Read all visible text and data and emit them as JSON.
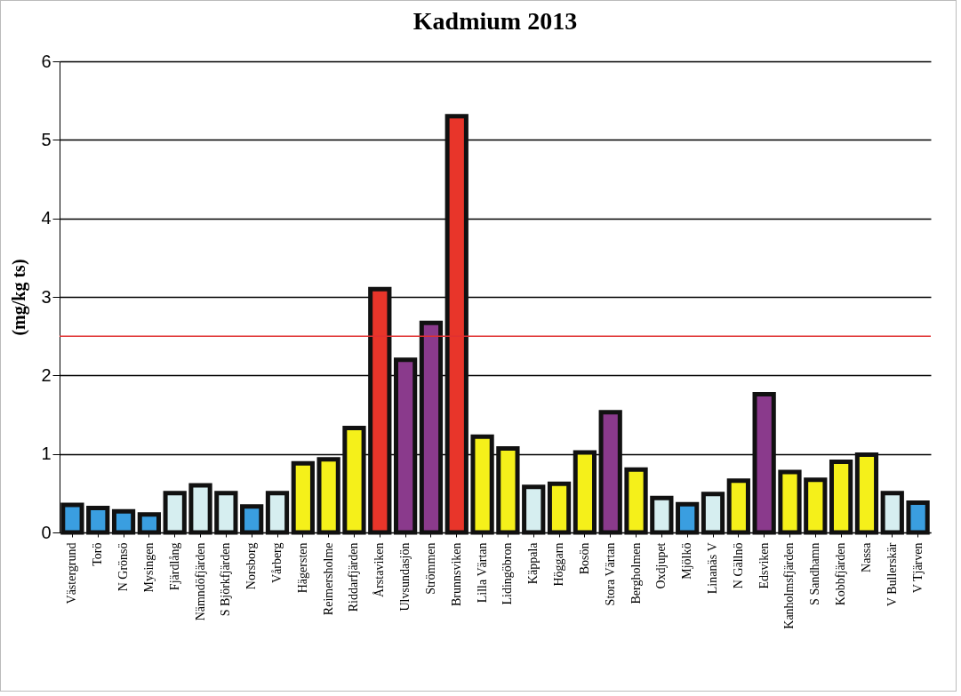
{
  "chart_data": {
    "type": "bar",
    "title": "Kadmium 2013",
    "ylabel": "(mg/kg ts)",
    "categories": [
      "Västergrund",
      "Torö",
      "N Grönsö",
      "Mysingen",
      "Fjärdlång",
      "Nämndöfjärden",
      "S Björkfjärden",
      "Norsborg",
      "Vårberg",
      "Hägersten",
      "Reimersholme",
      "Riddarfjärden",
      "Årstaviken",
      "Ulvsundasjön",
      "Strömmen",
      "Brunnsviken",
      "Lilla Värtan",
      "Lidingöbron",
      "Käppala",
      "Höggarn",
      "Bosön",
      "Stora Värtan",
      "Bergholmen",
      "Oxdjupet",
      "Mjölkö",
      "Linanäs V",
      "N Gällnö",
      "Edsviken",
      "Kanholmsfjärden",
      "S Sandhamn",
      "Kobbfjärden",
      "Nassa",
      "V Bullerskär",
      "V Tjärven"
    ],
    "values": [
      0.35,
      0.31,
      0.27,
      0.23,
      0.5,
      0.6,
      0.5,
      0.33,
      0.5,
      0.88,
      0.93,
      1.33,
      3.1,
      2.2,
      2.67,
      5.3,
      1.22,
      1.07,
      0.58,
      0.62,
      1.02,
      1.53,
      0.8,
      0.44,
      0.36,
      0.49,
      0.66,
      1.76,
      0.77,
      0.67,
      0.9,
      0.99,
      0.5,
      0.38
    ],
    "colors": [
      "#3a9ee0",
      "#3a9ee0",
      "#3a9ee0",
      "#3a9ee0",
      "#d6eef0",
      "#d6eef0",
      "#d6eef0",
      "#3a9ee0",
      "#d6eef0",
      "#f5f01a",
      "#f5f01a",
      "#f5f01a",
      "#e8352a",
      "#8a3a8c",
      "#8a3a8c",
      "#e8352a",
      "#f5f01a",
      "#f5f01a",
      "#d6eef0",
      "#f5f01a",
      "#f5f01a",
      "#8a3a8c",
      "#f5f01a",
      "#d6eef0",
      "#3a9ee0",
      "#d6eef0",
      "#f5f01a",
      "#8a3a8c",
      "#f5f01a",
      "#f5f01a",
      "#f5f01a",
      "#f5f01a",
      "#d6eef0",
      "#3a9ee0"
    ],
    "ylim": [
      0,
      6
    ],
    "yticks": [
      0,
      1,
      2,
      3,
      4,
      5,
      6
    ],
    "grid": "y",
    "ref_lines": [
      {
        "axis": "y",
        "value": 2.5,
        "color": "#e03030"
      }
    ]
  }
}
